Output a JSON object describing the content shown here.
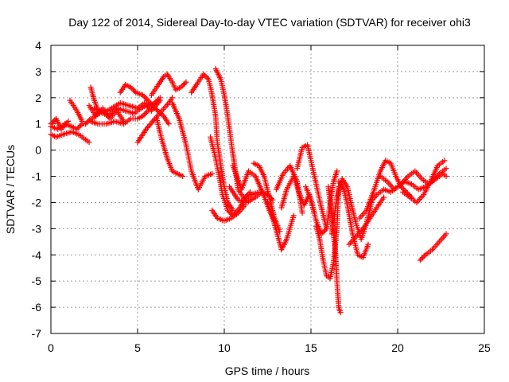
{
  "chart_data": {
    "type": "scatter",
    "title": "Day 122 of 2014, Sidereal Day-to-day VTEC variation (SDTVAR) for receiver ohi3",
    "xlabel": "GPS time / hours",
    "ylabel": "SDTVAR / TECUs",
    "xlim": [
      0,
      25
    ],
    "ylim": [
      -7,
      4
    ],
    "xticks": [
      "0",
      "5",
      "10",
      "15",
      "20",
      "25"
    ],
    "yticks": [
      "-7",
      "-6",
      "-5",
      "-4",
      "-3",
      "-2",
      "-1",
      "0",
      "1",
      "2",
      "3",
      "4"
    ],
    "grid": true,
    "marker": "+",
    "color": "#ff0000",
    "series": [
      {
        "x": [
          0.0,
          0.3,
          0.7,
          1.2,
          1.6,
          2.0,
          2.2
        ],
        "y": [
          0.6,
          0.5,
          0.6,
          0.7,
          0.6,
          0.4,
          0.3
        ]
      },
      {
        "x": [
          0.0,
          0.4,
          0.8,
          1.2,
          1.5,
          1.8,
          2.0,
          2.3
        ],
        "y": [
          0.9,
          0.8,
          1.0,
          0.9,
          0.8,
          1.0,
          1.0,
          1.2
        ]
      },
      {
        "x": [
          0.0,
          0.3,
          0.6,
          1.0
        ],
        "y": [
          1.0,
          1.2,
          0.8,
          1.1
        ]
      },
      {
        "x": [
          1.1,
          1.5,
          1.8
        ],
        "y": [
          1.9,
          1.5,
          1.1
        ]
      },
      {
        "x": [
          2.3,
          2.5,
          2.8
        ],
        "y": [
          2.4,
          1.9,
          1.4
        ]
      },
      {
        "x": [
          2.3,
          2.7,
          3.2,
          3.7,
          4.2,
          4.6,
          5.0,
          5.3,
          5.6
        ],
        "y": [
          1.1,
          1.0,
          1.0,
          1.1,
          1.0,
          1.2,
          1.2,
          1.3,
          1.5
        ]
      },
      {
        "x": [
          2.4,
          2.8,
          3.3,
          3.8,
          4.3,
          4.8,
          5.2,
          5.5,
          5.8,
          6.3
        ],
        "y": [
          1.2,
          1.5,
          1.3,
          1.6,
          1.5,
          1.4,
          1.6,
          1.7,
          1.5,
          1.9
        ]
      },
      {
        "x": [
          2.5,
          3.0,
          3.5,
          4.0,
          4.5,
          5.0,
          5.4,
          5.8,
          6.3
        ],
        "y": [
          1.6,
          1.4,
          1.6,
          1.8,
          1.7,
          1.6,
          1.8,
          1.7,
          2.0
        ]
      },
      {
        "x": [
          2.2,
          2.6,
          3.0,
          3.4,
          3.8,
          4.2
        ],
        "y": [
          1.7,
          1.3,
          1.6,
          1.2,
          1.5,
          1.1
        ]
      },
      {
        "x": [
          4.0,
          4.3,
          4.6,
          4.9,
          5.3,
          5.6,
          6.0,
          6.5,
          6.8
        ],
        "y": [
          2.2,
          2.5,
          2.4,
          2.2,
          2.1,
          1.9,
          1.6,
          1.3,
          1.0
        ]
      },
      {
        "x": [
          5.0,
          5.5,
          6.0,
          6.4,
          6.8,
          7.0
        ],
        "y": [
          0.3,
          0.8,
          1.2,
          1.5,
          1.8,
          2.0
        ]
      },
      {
        "x": [
          5.8,
          6.2,
          6.5,
          6.7,
          6.8,
          7.0,
          7.2,
          7.5,
          7.8
        ],
        "y": [
          2.1,
          2.5,
          2.8,
          2.9,
          2.8,
          2.6,
          2.3,
          2.4,
          2.6
        ]
      },
      {
        "x": [
          6.1,
          6.4,
          6.7,
          7.0,
          7.3,
          7.6
        ],
        "y": [
          1.2,
          0.4,
          -0.3,
          -0.8,
          -0.9,
          -1.0
        ]
      },
      {
        "x": [
          7.0,
          7.4,
          7.8,
          8.1,
          8.5,
          8.9,
          9.3
        ],
        "y": [
          1.8,
          1.2,
          0.2,
          -0.8,
          -1.5,
          -1.0,
          -0.9
        ]
      },
      {
        "x": [
          8.1,
          8.4,
          8.8,
          9.1,
          9.3,
          9.5,
          9.6,
          9.8,
          10.0,
          10.2,
          10.5
        ],
        "y": [
          2.2,
          2.5,
          2.9,
          2.7,
          2.1,
          1.3,
          0.3,
          -0.6,
          -1.4,
          -2.0,
          -2.3
        ]
      },
      {
        "x": [
          9.5,
          9.8,
          10.0,
          10.2,
          10.4,
          10.6,
          10.8,
          11.2,
          11.6,
          12.0
        ],
        "y": [
          3.1,
          2.7,
          2.1,
          1.3,
          0.3,
          -0.6,
          -1.5,
          -1.9,
          -1.7,
          -1.6
        ]
      },
      {
        "x": [
          9.2,
          9.5,
          9.7,
          9.9,
          10.2,
          10.5,
          10.9,
          11.2,
          11.5
        ],
        "y": [
          0.5,
          -0.3,
          -1.0,
          -1.7,
          -2.3,
          -2.5,
          -2.2,
          -1.8,
          -1.6
        ]
      },
      {
        "x": [
          9.3,
          9.6,
          10.0,
          10.4,
          10.8,
          11.2
        ],
        "y": [
          -2.3,
          -2.6,
          -2.7,
          -2.6,
          -2.4,
          -2.1
        ]
      },
      {
        "x": [
          10.3,
          10.8,
          11.3,
          11.8,
          12.2,
          12.5,
          12.8
        ],
        "y": [
          -1.4,
          -1.9,
          -2.0,
          -1.8,
          -1.6,
          -1.7,
          -1.9
        ]
      },
      {
        "x": [
          10.5,
          11.0,
          11.4,
          11.8,
          12.2,
          12.6,
          12.9
        ],
        "y": [
          -0.6,
          -1.5,
          -0.8,
          -1.0,
          -1.6,
          -2.3,
          -2.7
        ]
      },
      {
        "x": [
          11.7,
          12.0,
          12.3,
          12.6,
          12.9,
          13.2
        ],
        "y": [
          -0.5,
          -0.6,
          -1.0,
          -1.8,
          -2.6,
          -3.1
        ]
      },
      {
        "x": [
          12.5,
          12.8,
          13.1,
          13.3,
          13.6,
          14.0
        ],
        "y": [
          -2.0,
          -2.6,
          -3.3,
          -3.8,
          -3.4,
          -2.5
        ]
      },
      {
        "x": [
          13.0,
          13.4,
          13.8,
          14.2,
          14.5
        ],
        "y": [
          -1.5,
          -0.9,
          -0.6,
          -1.2,
          -2.4
        ]
      },
      {
        "x": [
          13.3,
          13.6,
          14.0,
          14.3,
          14.6,
          14.9,
          15.2
        ],
        "y": [
          -2.2,
          -1.5,
          -1.0,
          -1.6,
          -2.1,
          -1.7,
          -2.4
        ]
      },
      {
        "x": [
          14.2,
          14.5,
          14.8,
          15.0,
          15.3,
          15.6,
          15.9
        ],
        "y": [
          -0.7,
          0.1,
          0.2,
          -0.4,
          -1.3,
          -2.2,
          -3.0
        ]
      },
      {
        "x": [
          14.7,
          15.0,
          15.3,
          15.6,
          15.9,
          16.1,
          16.3,
          16.5
        ],
        "y": [
          -1.4,
          -1.9,
          -2.7,
          -3.2,
          -3.0,
          -2.1,
          -1.2,
          -0.8
        ]
      },
      {
        "x": [
          15.3,
          15.5,
          15.7,
          15.9,
          16.1,
          16.3,
          16.5,
          16.6
        ],
        "y": [
          -2.9,
          -3.4,
          -4.2,
          -4.8,
          -4.9,
          -4.3,
          -3.0,
          -1.4
        ]
      },
      {
        "x": [
          16.0,
          16.2,
          16.4,
          16.5,
          16.6,
          16.7
        ],
        "y": [
          -1.4,
          -2.5,
          -3.8,
          -5.0,
          -6.0,
          -6.2
        ]
      },
      {
        "x": [
          16.2,
          16.5,
          16.8,
          17.1,
          17.3,
          17.6,
          17.9,
          18.2,
          18.5
        ],
        "y": [
          -3.2,
          -1.8,
          -1.1,
          -1.4,
          -2.0,
          -2.8,
          -3.4,
          -2.8,
          -2.0
        ]
      },
      {
        "x": [
          16.6,
          16.9,
          17.1,
          17.4,
          17.7,
          18.0,
          18.3
        ],
        "y": [
          -1.2,
          -1.5,
          -2.1,
          -3.2,
          -4.0,
          -4.1,
          -3.6
        ]
      },
      {
        "x": [
          17.2,
          17.6,
          18.0,
          18.4,
          18.8,
          19.2
        ],
        "y": [
          -3.6,
          -3.3,
          -3.0,
          -2.6,
          -2.2,
          -1.8
        ]
      },
      {
        "x": [
          17.8,
          18.2,
          18.6,
          19.0,
          19.3,
          19.6,
          19.9,
          20.2,
          20.5,
          20.8
        ],
        "y": [
          -2.6,
          -2.3,
          -1.6,
          -0.8,
          -0.4,
          -0.5,
          -1.0,
          -1.4,
          -1.6,
          -1.8
        ]
      },
      {
        "x": [
          18.4,
          18.8,
          19.2,
          19.6,
          20.0,
          20.4,
          20.8,
          21.2,
          21.6,
          22.0,
          22.4,
          22.8
        ],
        "y": [
          -2.0,
          -1.7,
          -1.5,
          -1.6,
          -1.4,
          -1.2,
          -1.3,
          -1.5,
          -1.4,
          -1.2,
          -0.9,
          -0.7
        ]
      },
      {
        "x": [
          19.0,
          19.4,
          19.8,
          20.2,
          20.6,
          21.0,
          21.4,
          21.8,
          22.2,
          22.6,
          22.8
        ],
        "y": [
          -1.0,
          -1.2,
          -1.5,
          -1.3,
          -1.0,
          -0.8,
          -1.1,
          -1.3,
          -1.1,
          -0.9,
          -1.0
        ]
      },
      {
        "x": [
          20.3,
          20.7,
          21.1,
          21.5,
          21.9,
          22.3,
          22.7
        ],
        "y": [
          -1.6,
          -1.8,
          -2.0,
          -1.7,
          -1.2,
          -0.6,
          -0.4
        ]
      },
      {
        "x": [
          21.3,
          21.6,
          22.0,
          22.4,
          22.8
        ],
        "y": [
          -4.2,
          -4.0,
          -3.8,
          -3.5,
          -3.2
        ]
      }
    ]
  }
}
